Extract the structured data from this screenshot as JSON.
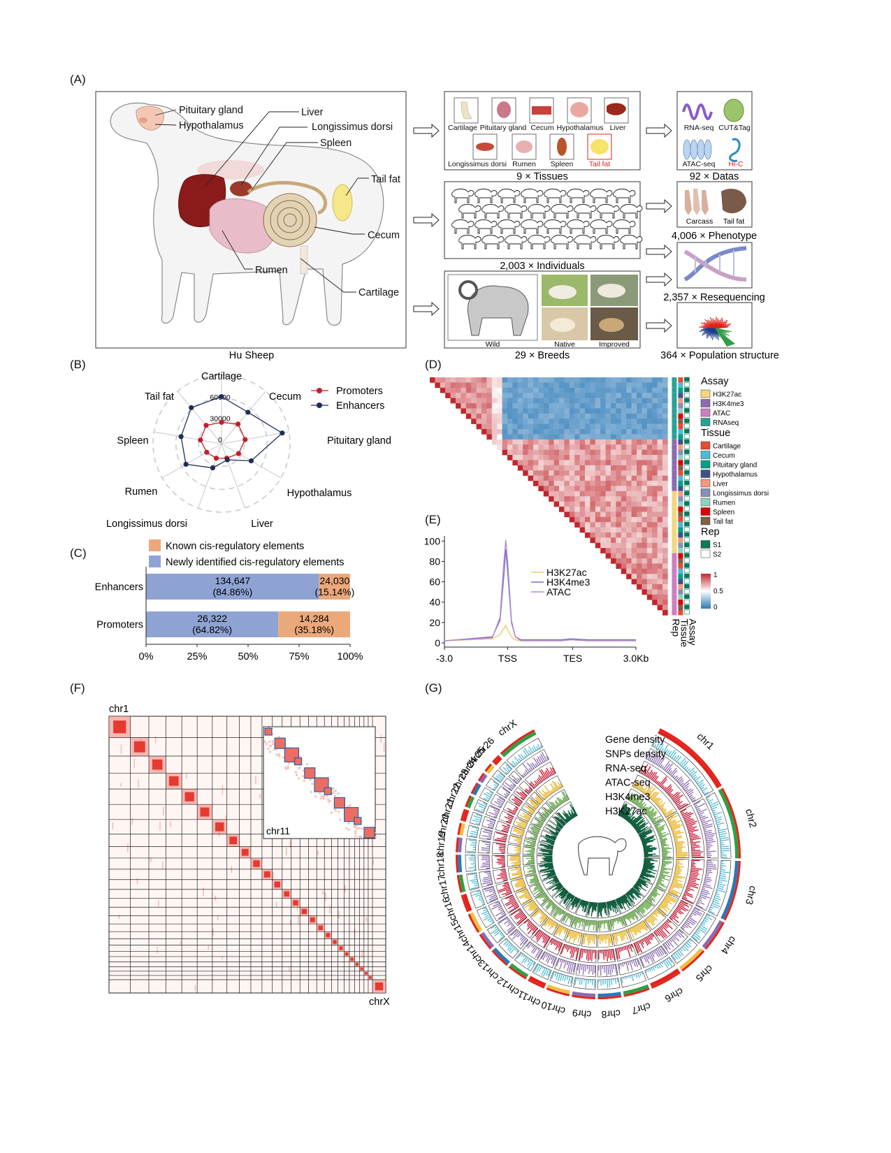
{
  "panels": {
    "a": "(A)",
    "b": "(B)",
    "c": "(C)",
    "d": "(D)",
    "e": "(E)",
    "f": "(F)",
    "g": "(G)"
  },
  "panel_a": {
    "organs": [
      "Pituitary gland",
      "Hypothalamus",
      "Liver",
      "Longissimus dorsi",
      "Spleen",
      "Tail fat",
      "Cecum",
      "Rumen",
      "Cartilage"
    ],
    "sheep_caption": "Hu Sheep",
    "tissue_icons": [
      "Cartilage",
      "Pituitary gland",
      "Cecum",
      "Hypothalamus",
      "Liver",
      "Longissimus dorsi",
      "Rumen",
      "Spleen",
      "Tail fat"
    ],
    "tissues_caption": "9 × Tissues",
    "data_icons": [
      "RNA-seq",
      "CUT&Tag",
      "ATAC-seq",
      "Hi-C"
    ],
    "datas_caption": "92 × Datas",
    "individuals_caption": "2,003 × Individuals",
    "phenotype_icons": [
      "Carcass",
      "Tail fat"
    ],
    "phenotype_caption": "4,006 × Phenotype",
    "reseq_caption": "2,357 × Resequencing",
    "breed_photos": [
      "Wild",
      "Native",
      "Improved"
    ],
    "breeds_caption": "29 × Breeds",
    "popstruct_caption": "364 × Population structure",
    "colors": {
      "liver": "#8b1a1a",
      "tail_fat_highlight": "#e2231a",
      "hic_label": "#e2231a"
    }
  },
  "chart_data": [
    {
      "panel": "B",
      "type": "radar",
      "categories": [
        "Cartilage",
        "Cecum",
        "Pituitary gland",
        "Hypothalamus",
        "Liver",
        "Longissimus dorsi",
        "Rumen",
        "Spleen",
        "Tail fat"
      ],
      "ticks": [
        "60000",
        "30000",
        "0"
      ],
      "rmax": 80000,
      "series": [
        {
          "name": "Promoters",
          "color": "#c0202a",
          "values": [
            25000,
            30000,
            28000,
            23000,
            18000,
            18000,
            20000,
            25000,
            28000
          ]
        },
        {
          "name": "Enhancers",
          "color": "#1f2d5a",
          "values": [
            55000,
            48000,
            72000,
            40000,
            20000,
            30000,
            48000,
            48000,
            55000
          ]
        }
      ]
    },
    {
      "panel": "C",
      "type": "bar",
      "orientation": "horizontal-stacked",
      "categories": [
        "Enhancers",
        "Promoters"
      ],
      "series": [
        {
          "name": "Newly identified cis-regulatory elements",
          "color": "#8fa3d3",
          "values": [
            84.86,
            64.82
          ],
          "labels": [
            "134,647\n(84.86%)",
            "26,322\n(64.82%)"
          ]
        },
        {
          "name": "Known cis-regulatory elements",
          "color": "#eba87b",
          "values": [
            15.14,
            35.18
          ],
          "labels": [
            "24,030\n(15.14%)",
            "14,284\n(35.18%)"
          ]
        }
      ],
      "legend_order": [
        "Known cis-regulatory elements",
        "Newly identified cis-regulatory elements"
      ],
      "ticks": [
        "0%",
        "25%",
        "50%",
        "75%",
        "100%"
      ]
    },
    {
      "panel": "D",
      "type": "heatmap",
      "shape": "lower-triangle correlation",
      "colorbar": {
        "ticks": [
          "1",
          "0.5",
          "0"
        ],
        "high": "#c0272d",
        "mid": "#ffffff",
        "low": "#2a78b6"
      },
      "axis_labels": [
        "Assay",
        "Tissue",
        "Rep"
      ],
      "legends": [
        {
          "title": "Assay",
          "items": [
            {
              "name": "H3K27ac",
              "color": "#f4d67c"
            },
            {
              "name": "H3K4me3",
              "color": "#8c6bb1"
            },
            {
              "name": "ATAC",
              "color": "#cd7fc0"
            },
            {
              "name": "RNAseq",
              "color": "#2aa198"
            }
          ]
        },
        {
          "title": "Tissue",
          "items": [
            {
              "name": "Cartilage",
              "color": "#e64b35"
            },
            {
              "name": "Cecum",
              "color": "#4dbbd5"
            },
            {
              "name": "Pituitary gland",
              "color": "#00a087"
            },
            {
              "name": "Hypothalamus",
              "color": "#3c5488"
            },
            {
              "name": "Liver",
              "color": "#f39b7f"
            },
            {
              "name": "Longissimus dorsi",
              "color": "#8491b4"
            },
            {
              "name": "Rumen",
              "color": "#91d1c2"
            },
            {
              "name": "Spleen",
              "color": "#dc0000"
            },
            {
              "name": "Tail fat",
              "color": "#7e6148"
            }
          ]
        },
        {
          "title": "Rep",
          "items": [
            {
              "name": "S1",
              "color": "#0b7a5a"
            },
            {
              "name": "S2",
              "color": "#ffffff"
            }
          ]
        }
      ]
    },
    {
      "panel": "E",
      "type": "line",
      "x_ticks": [
        "-3.0",
        "TSS",
        "TES",
        "3.0Kb"
      ],
      "y_ticks": [
        "0",
        "20",
        "40",
        "60",
        "80",
        "100"
      ],
      "ylim": [
        0,
        105
      ],
      "x": [
        0,
        0.25,
        0.29,
        0.31,
        0.32,
        0.33,
        0.35,
        0.37,
        0.4,
        0.5,
        0.61,
        0.66,
        0.75,
        1
      ],
      "series": [
        {
          "name": "H3K27ac",
          "color": "#f0c96a",
          "values": [
            2,
            4,
            8,
            14,
            17,
            13,
            6,
            3,
            2,
            2,
            2,
            3,
            2,
            2
          ]
        },
        {
          "name": "H3K4me3",
          "color": "#7a6fc2",
          "values": [
            2,
            6,
            22,
            65,
            92,
            70,
            20,
            6,
            3,
            3,
            3,
            4,
            3,
            3
          ]
        },
        {
          "name": "ATAC",
          "color": "#b48ad0",
          "values": [
            2,
            5,
            25,
            78,
            101,
            80,
            22,
            6,
            2,
            2,
            2,
            3,
            2,
            2
          ]
        }
      ]
    },
    {
      "panel": "F",
      "type": "heatmap",
      "shape": "genome-wide Hi-C contact map",
      "labels": [
        "chr1",
        "chrX"
      ],
      "inset_label": "chr11",
      "color": "#e2231a"
    },
    {
      "panel": "G",
      "type": "circos",
      "chromosomes": [
        "chr1",
        "chr2",
        "chr3",
        "chr4",
        "chr5",
        "chr6",
        "chr7",
        "chr8",
        "chr9",
        "chr10",
        "chr11",
        "chr12",
        "chr13",
        "chr14",
        "chr15",
        "chr16",
        "chr17",
        "chr18",
        "chr19",
        "chr20",
        "chr21",
        "chr22",
        "chr23",
        "chr24",
        "chr25",
        "chr26",
        "chrX"
      ],
      "tracks": [
        {
          "name": "Gene density",
          "color": "#4dbbd5"
        },
        {
          "name": "SNPs density",
          "color": "#8c6bb1"
        },
        {
          "name": "RNA-seq",
          "color": "#c8102e"
        },
        {
          "name": "ATAC-seq",
          "color": "#e8b21e"
        },
        {
          "name": "H3K4me3",
          "color": "#6aa84f"
        },
        {
          "name": "H3K27ac",
          "color": "#0b5d3b"
        }
      ]
    }
  ]
}
